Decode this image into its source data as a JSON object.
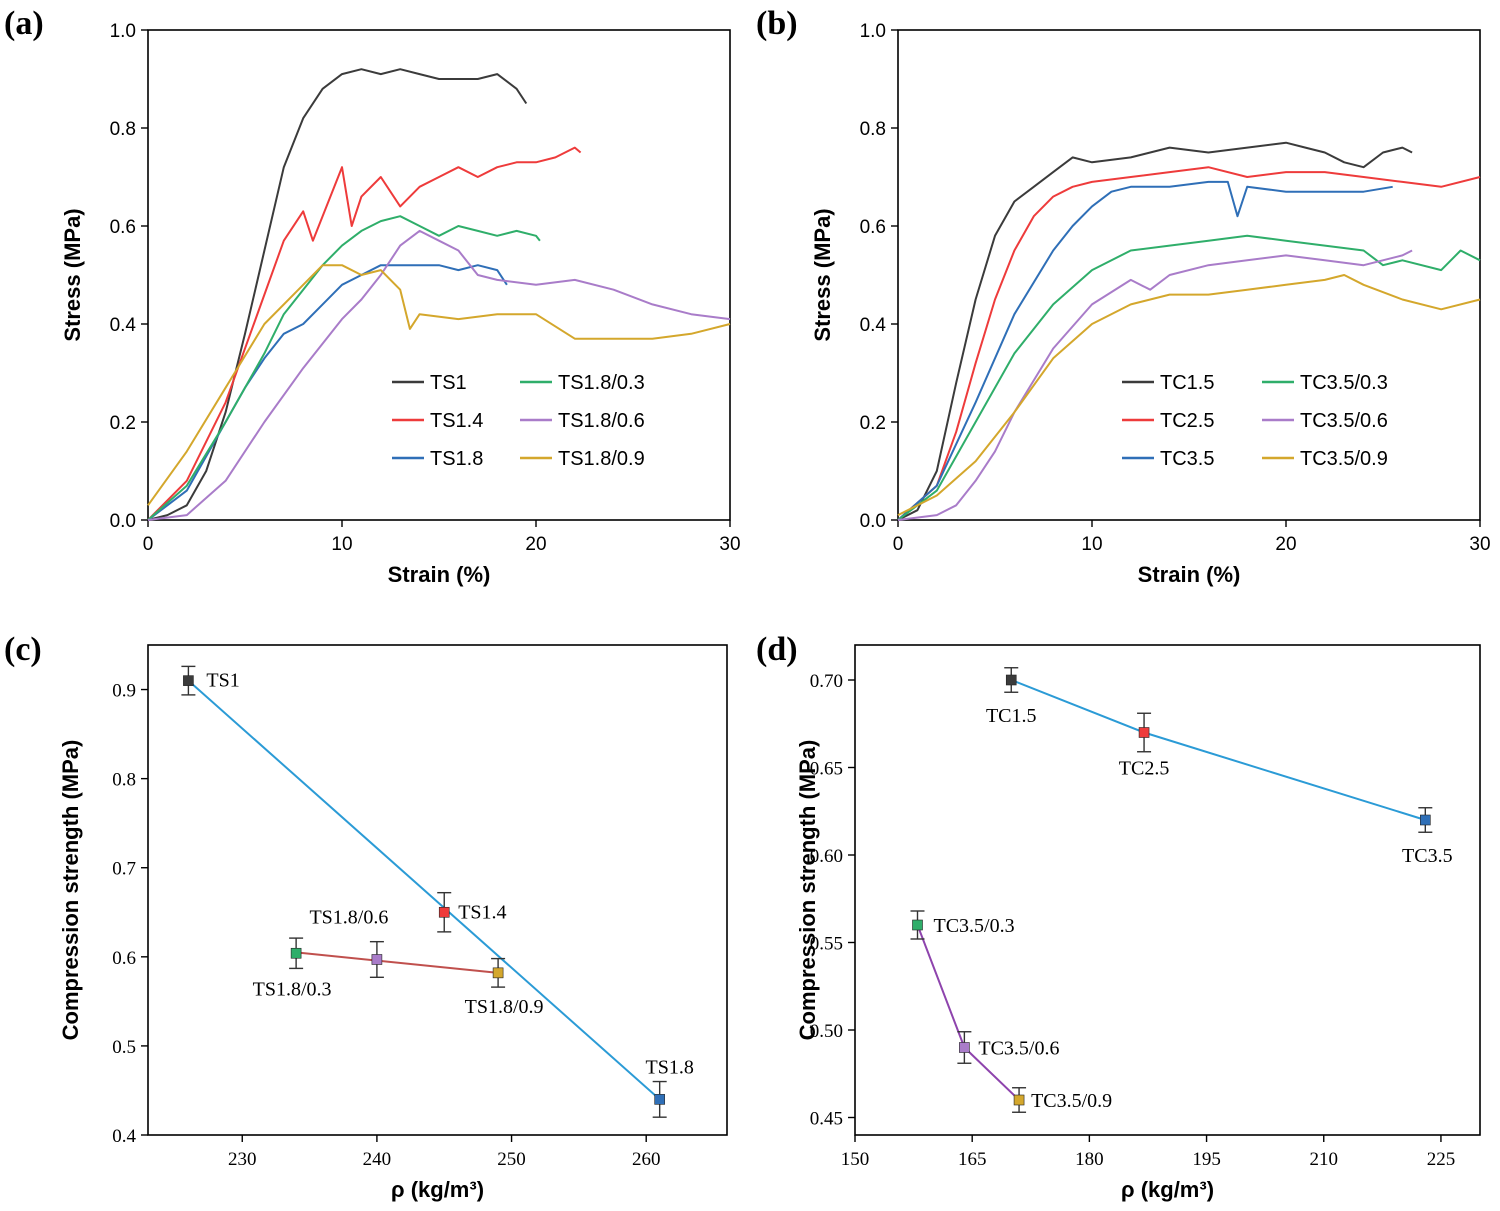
{
  "colors": {
    "TS1": "#3b3b3b",
    "TS1.4": "#ee3b3b",
    "TS1.8": "#2f6fb7",
    "TS1.8/0.3": "#2fae6a",
    "TS1.8/0.6": "#a97cc9",
    "TS1.8/0.9": "#d4a72c",
    "TC1.5": "#3b3b3b",
    "TC2.5": "#ee3b3b",
    "TC3.5": "#2f6fb7",
    "TC3.5/0.3": "#2fae6a",
    "TC3.5/0.6": "#a97cc9",
    "TC3.5/0.9": "#d4a72c",
    "fit_blue": "#2b9bd6",
    "fit_red": "#c0504d",
    "fit_purple": "#8e44ad"
  },
  "chart_data": [
    {
      "id": "a",
      "panel_label": "(a)",
      "type": "line",
      "xlabel": "Strain (%)",
      "ylabel": "Stress (MPa)",
      "xlim": [
        0,
        30
      ],
      "ylim": [
        0,
        1.0
      ],
      "xticks": [
        "0",
        "10",
        "20",
        "30"
      ],
      "yticks": [
        "0.0",
        "0.2",
        "0.4",
        "0.6",
        "0.8",
        "1.0"
      ],
      "legend": [
        "TS1",
        "TS1.4",
        "TS1.8",
        "TS1.8/0.3",
        "TS1.8/0.6",
        "TS1.8/0.9"
      ],
      "series": [
        {
          "name": "TS1",
          "x": [
            0,
            1,
            2,
            3,
            4,
            5,
            6,
            7,
            8,
            9,
            10,
            11,
            12,
            13,
            14,
            15,
            16,
            17,
            18,
            19,
            19.5
          ],
          "y": [
            0,
            0.01,
            0.03,
            0.1,
            0.22,
            0.38,
            0.55,
            0.72,
            0.82,
            0.88,
            0.91,
            0.92,
            0.91,
            0.92,
            0.91,
            0.9,
            0.9,
            0.9,
            0.91,
            0.88,
            0.85
          ]
        },
        {
          "name": "TS1.4",
          "x": [
            0,
            2,
            4,
            6,
            7,
            8,
            8.5,
            9,
            10,
            10.5,
            11,
            12,
            13,
            14,
            15,
            16,
            17,
            18,
            19,
            20,
            21,
            22,
            22.3
          ],
          "y": [
            0,
            0.08,
            0.24,
            0.46,
            0.57,
            0.63,
            0.57,
            0.62,
            0.72,
            0.6,
            0.66,
            0.7,
            0.64,
            0.68,
            0.7,
            0.72,
            0.7,
            0.72,
            0.73,
            0.73,
            0.74,
            0.76,
            0.75
          ]
        },
        {
          "name": "TS1.8",
          "x": [
            0,
            2,
            4,
            5,
            6,
            7,
            8,
            9,
            10,
            11,
            12,
            13,
            14,
            15,
            16,
            17,
            18,
            18.5
          ],
          "y": [
            0,
            0.06,
            0.2,
            0.27,
            0.33,
            0.38,
            0.4,
            0.44,
            0.48,
            0.5,
            0.52,
            0.52,
            0.52,
            0.52,
            0.51,
            0.52,
            0.51,
            0.48
          ]
        },
        {
          "name": "TS1.8/0.3",
          "x": [
            0,
            2,
            4,
            5,
            6,
            7,
            8,
            9,
            10,
            11,
            12,
            13,
            14,
            15,
            16,
            17,
            18,
            19,
            20,
            20.2
          ],
          "y": [
            0,
            0.07,
            0.2,
            0.27,
            0.34,
            0.42,
            0.47,
            0.52,
            0.56,
            0.59,
            0.61,
            0.62,
            0.6,
            0.58,
            0.6,
            0.59,
            0.58,
            0.59,
            0.58,
            0.57
          ]
        },
        {
          "name": "TS1.8/0.6",
          "x": [
            0,
            2,
            4,
            6,
            8,
            10,
            11,
            12,
            13,
            14,
            15,
            16,
            17,
            18,
            20,
            22,
            24,
            26,
            28,
            30
          ],
          "y": [
            0,
            0.01,
            0.08,
            0.2,
            0.31,
            0.41,
            0.45,
            0.5,
            0.56,
            0.59,
            0.57,
            0.55,
            0.5,
            0.49,
            0.48,
            0.49,
            0.47,
            0.44,
            0.42,
            0.41
          ]
        },
        {
          "name": "TS1.8/0.9",
          "x": [
            0,
            2,
            4,
            6,
            8,
            9,
            10,
            11,
            12,
            13,
            13.5,
            14,
            16,
            18,
            20,
            22,
            24,
            26,
            28,
            30
          ],
          "y": [
            0.03,
            0.14,
            0.27,
            0.4,
            0.48,
            0.52,
            0.52,
            0.5,
            0.51,
            0.47,
            0.39,
            0.42,
            0.41,
            0.42,
            0.42,
            0.37,
            0.37,
            0.37,
            0.38,
            0.4
          ]
        }
      ]
    },
    {
      "id": "b",
      "panel_label": "(b)",
      "type": "line",
      "xlabel": "Strain (%)",
      "ylabel": "Stress (MPa)",
      "xlim": [
        0,
        30
      ],
      "ylim": [
        0,
        1.0
      ],
      "xticks": [
        "0",
        "10",
        "20",
        "30"
      ],
      "yticks": [
        "0.0",
        "0.2",
        "0.4",
        "0.6",
        "0.8",
        "1.0"
      ],
      "legend": [
        "TC1.5",
        "TC2.5",
        "TC3.5",
        "TC3.5/0.3",
        "TC3.5/0.6",
        "TC3.5/0.9"
      ],
      "series": [
        {
          "name": "TC1.5",
          "x": [
            0,
            1,
            2,
            3,
            4,
            5,
            6,
            7,
            8,
            9,
            10,
            12,
            14,
            16,
            18,
            20,
            21,
            22,
            23,
            24,
            25,
            26,
            26.5
          ],
          "y": [
            0,
            0.02,
            0.1,
            0.28,
            0.45,
            0.58,
            0.65,
            0.68,
            0.71,
            0.74,
            0.73,
            0.74,
            0.76,
            0.75,
            0.76,
            0.77,
            0.76,
            0.75,
            0.73,
            0.72,
            0.75,
            0.76,
            0.75
          ]
        },
        {
          "name": "TC2.5",
          "x": [
            0,
            2,
            3,
            4,
            5,
            6,
            7,
            8,
            9,
            10,
            12,
            14,
            16,
            18,
            20,
            22,
            24,
            26,
            28,
            30
          ],
          "y": [
            0,
            0.07,
            0.18,
            0.32,
            0.45,
            0.55,
            0.62,
            0.66,
            0.68,
            0.69,
            0.7,
            0.71,
            0.72,
            0.7,
            0.71,
            0.71,
            0.7,
            0.69,
            0.68,
            0.7
          ]
        },
        {
          "name": "TC3.5",
          "x": [
            0,
            2,
            4,
            6,
            8,
            9,
            10,
            11,
            12,
            14,
            16,
            17,
            17.5,
            18,
            20,
            22,
            24,
            25.5
          ],
          "y": [
            0,
            0.07,
            0.24,
            0.42,
            0.55,
            0.6,
            0.64,
            0.67,
            0.68,
            0.68,
            0.69,
            0.69,
            0.62,
            0.68,
            0.67,
            0.67,
            0.67,
            0.68
          ]
        },
        {
          "name": "TC3.5/0.3",
          "x": [
            0,
            2,
            4,
            6,
            8,
            10,
            12,
            14,
            16,
            18,
            20,
            22,
            24,
            25,
            26,
            28,
            29,
            30
          ],
          "y": [
            0,
            0.06,
            0.2,
            0.34,
            0.44,
            0.51,
            0.55,
            0.56,
            0.57,
            0.58,
            0.57,
            0.56,
            0.55,
            0.52,
            0.53,
            0.51,
            0.55,
            0.53
          ]
        },
        {
          "name": "TC3.5/0.6",
          "x": [
            0,
            2,
            3,
            4,
            5,
            6,
            8,
            10,
            12,
            13,
            14,
            16,
            18,
            20,
            22,
            24,
            26,
            26.5
          ],
          "y": [
            0,
            0.01,
            0.03,
            0.08,
            0.14,
            0.22,
            0.35,
            0.44,
            0.49,
            0.47,
            0.5,
            0.52,
            0.53,
            0.54,
            0.53,
            0.52,
            0.54,
            0.55
          ]
        },
        {
          "name": "TC3.5/0.9",
          "x": [
            0,
            2,
            4,
            6,
            8,
            10,
            12,
            14,
            16,
            18,
            20,
            22,
            23,
            24,
            26,
            28,
            30
          ],
          "y": [
            0.01,
            0.05,
            0.12,
            0.22,
            0.33,
            0.4,
            0.44,
            0.46,
            0.46,
            0.47,
            0.48,
            0.49,
            0.5,
            0.48,
            0.45,
            0.43,
            0.45
          ]
        }
      ]
    },
    {
      "id": "c",
      "panel_label": "(c)",
      "type": "scatter",
      "xlabel": "ρ (kg/m³)",
      "ylabel": "Compression strength (MPa)",
      "xlim": [
        223,
        266
      ],
      "ylim": [
        0.4,
        0.95
      ],
      "xticks": [
        230,
        240,
        250,
        260
      ],
      "yticks": [
        0.4,
        0.5,
        0.6,
        0.7,
        0.8,
        0.9
      ],
      "points": [
        {
          "label": "TS1",
          "x": 226,
          "y": 0.91,
          "err": 0.016
        },
        {
          "label": "TS1.4",
          "x": 245,
          "y": 0.65,
          "err": 0.022
        },
        {
          "label": "TS1.8",
          "x": 261,
          "y": 0.44,
          "err": 0.02
        },
        {
          "label": "TS1.8/0.3",
          "x": 234,
          "y": 0.604,
          "err": 0.017
        },
        {
          "label": "TS1.8/0.6",
          "x": 240,
          "y": 0.597,
          "err": 0.02
        },
        {
          "label": "TS1.8/0.9",
          "x": 249,
          "y": 0.582,
          "err": 0.016
        }
      ],
      "fits": [
        {
          "name": "blue",
          "x": [
            226,
            261
          ],
          "y": [
            0.91,
            0.44
          ]
        },
        {
          "name": "red",
          "x": [
            234,
            249
          ],
          "y": [
            0.605,
            0.582
          ]
        }
      ]
    },
    {
      "id": "d",
      "panel_label": "(d)",
      "type": "scatter",
      "xlabel": "ρ (kg/m³)",
      "ylabel": "Compression strength (MPa)",
      "xlim": [
        150,
        230
      ],
      "ylim": [
        0.44,
        0.72
      ],
      "xticks": [
        150,
        165,
        180,
        195,
        210,
        225
      ],
      "yticks": [
        "0.45",
        "0.50",
        "0.55",
        "0.60",
        "0.65",
        "0.70"
      ],
      "points": [
        {
          "label": "TC1.5",
          "x": 170,
          "y": 0.7,
          "err": 0.007
        },
        {
          "label": "TC2.5",
          "x": 187,
          "y": 0.67,
          "err": 0.011
        },
        {
          "label": "TC3.5",
          "x": 223,
          "y": 0.62,
          "err": 0.007
        },
        {
          "label": "TC3.5/0.3",
          "x": 158,
          "y": 0.56,
          "err": 0.008
        },
        {
          "label": "TC3.5/0.6",
          "x": 164,
          "y": 0.49,
          "err": 0.009
        },
        {
          "label": "TC3.5/0.9",
          "x": 171,
          "y": 0.46,
          "err": 0.007
        }
      ],
      "fits": [
        {
          "name": "blue",
          "x": [
            170,
            187,
            223
          ],
          "y": [
            0.7,
            0.67,
            0.62
          ]
        },
        {
          "name": "purple",
          "x": [
            158,
            164,
            171
          ],
          "y": [
            0.56,
            0.49,
            0.46
          ]
        }
      ]
    }
  ]
}
